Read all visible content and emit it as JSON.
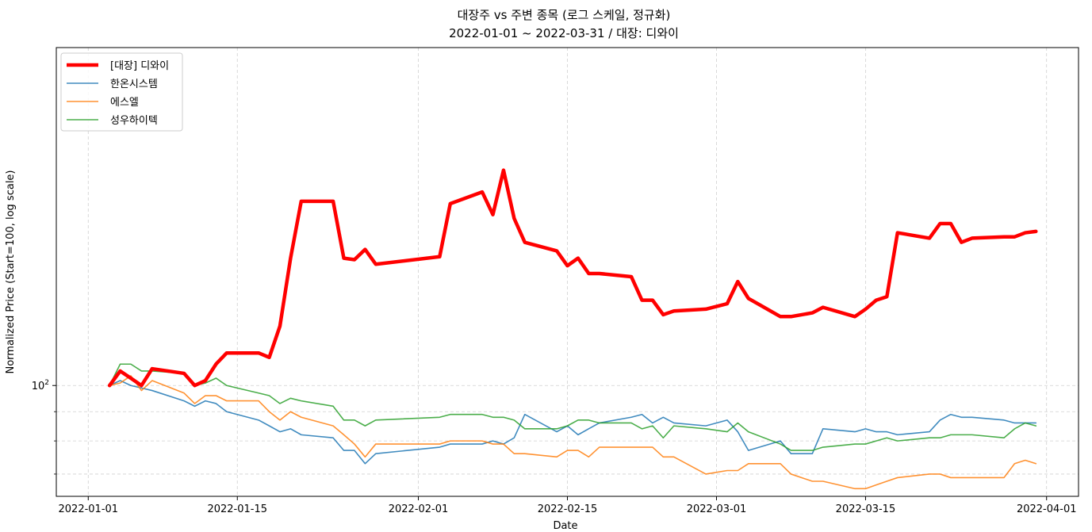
{
  "chart_data": {
    "type": "line",
    "title_line1": "대장주 vs 주변 종목 (로그 스케일, 정규화)",
    "title_line2": "2022-01-01 ~ 2022-03-31 / 대장: 디와이",
    "xlabel": "Date",
    "ylabel": "Normalized Price (Start=100, log scale)",
    "y_scale": "log",
    "ylim": [
      64,
      390
    ],
    "y_ticks": [
      {
        "value": 100,
        "label": "10²"
      }
    ],
    "y_minor_grid": [
      70,
      80,
      90
    ],
    "x_ticks": [
      {
        "date": "2022-01-01",
        "label": "2022-01-01"
      },
      {
        "date": "2022-01-15",
        "label": "2022-01-15"
      },
      {
        "date": "2022-02-01",
        "label": "2022-02-01"
      },
      {
        "date": "2022-02-15",
        "label": "2022-02-15"
      },
      {
        "date": "2022-03-01",
        "label": "2022-03-01"
      },
      {
        "date": "2022-03-15",
        "label": "2022-03-15"
      },
      {
        "date": "2022-04-01",
        "label": "2022-04-01"
      }
    ],
    "xlim": [
      "2021-12-29",
      "2022-04-04"
    ],
    "grid": true,
    "legend_position": "upper-left",
    "x": [
      "2022-01-03",
      "2022-01-04",
      "2022-01-05",
      "2022-01-06",
      "2022-01-07",
      "2022-01-10",
      "2022-01-11",
      "2022-01-12",
      "2022-01-13",
      "2022-01-14",
      "2022-01-17",
      "2022-01-18",
      "2022-01-19",
      "2022-01-20",
      "2022-01-21",
      "2022-01-24",
      "2022-01-25",
      "2022-01-26",
      "2022-01-27",
      "2022-01-28",
      "2022-02-03",
      "2022-02-04",
      "2022-02-07",
      "2022-02-08",
      "2022-02-09",
      "2022-02-10",
      "2022-02-11",
      "2022-02-14",
      "2022-02-15",
      "2022-02-16",
      "2022-02-17",
      "2022-02-18",
      "2022-02-21",
      "2022-02-22",
      "2022-02-23",
      "2022-02-24",
      "2022-02-25",
      "2022-02-28",
      "2022-03-02",
      "2022-03-03",
      "2022-03-04",
      "2022-03-07",
      "2022-03-08",
      "2022-03-10",
      "2022-03-11",
      "2022-03-14",
      "2022-03-15",
      "2022-03-16",
      "2022-03-17",
      "2022-03-18",
      "2022-03-21",
      "2022-03-22",
      "2022-03-23",
      "2022-03-24",
      "2022-03-25",
      "2022-03-28",
      "2022-03-29",
      "2022-03-30",
      "2022-03-31"
    ],
    "series": [
      {
        "name": "[대장] 디와이",
        "color": "#ff0000",
        "width": 4.5,
        "values": [
          100,
          106,
          103,
          100,
          107,
          105,
          100,
          102,
          109,
          114,
          114,
          112,
          127,
          167,
          210,
          210,
          167,
          166,
          173,
          163,
          168,
          208,
          218,
          199,
          238,
          196,
          178,
          172,
          162,
          167,
          157,
          157,
          155,
          141,
          141,
          133,
          135,
          136,
          139,
          152,
          142,
          132,
          132,
          134,
          137,
          132,
          136,
          141,
          143,
          185,
          181,
          192,
          192,
          178,
          181,
          182,
          182,
          185,
          186
        ]
      },
      {
        "name": "한온시스템",
        "color": "#1f77b4",
        "width": 1.6,
        "values": [
          100,
          102,
          100,
          99,
          98,
          94,
          92,
          94,
          93,
          90,
          87,
          85,
          83,
          84,
          82,
          81,
          77,
          77,
          73,
          76,
          78,
          79,
          79,
          80,
          79,
          81,
          89,
          83,
          85,
          82,
          84,
          86,
          88,
          89,
          86,
          88,
          86,
          85,
          87,
          83,
          77,
          80,
          76,
          76,
          84,
          83,
          84,
          83,
          83,
          82,
          83,
          87,
          89,
          88,
          88,
          87,
          86,
          86,
          86
        ],
        "opacity": 0.85
      },
      {
        "name": "에스엘",
        "color": "#ff7f0e",
        "width": 1.6,
        "values": [
          100,
          101,
          104,
          98,
          102,
          97,
          93,
          96,
          96,
          94,
          94,
          90,
          87,
          90,
          88,
          85,
          82,
          79,
          75,
          79,
          79,
          80,
          80,
          79,
          79,
          76,
          76,
          75,
          77,
          77,
          75,
          78,
          78,
          78,
          78,
          75,
          75,
          70,
          71,
          71,
          73,
          73,
          70,
          68,
          68,
          66,
          66,
          67,
          68,
          69,
          70,
          70,
          69,
          69,
          69,
          69,
          73,
          74,
          73
        ],
        "opacity": 0.85
      },
      {
        "name": "성우하이텍",
        "color": "#2ca02c",
        "width": 1.6,
        "values": [
          100,
          109,
          109,
          106,
          106,
          105,
          100,
          101,
          103,
          100,
          97,
          96,
          93,
          95,
          94,
          92,
          87,
          87,
          85,
          87,
          88,
          89,
          89,
          88,
          88,
          87,
          84,
          84,
          85,
          87,
          87,
          86,
          86,
          84,
          85,
          81,
          85,
          84,
          83,
          86,
          83,
          79,
          77,
          77,
          78,
          79,
          79,
          80,
          81,
          80,
          81,
          81,
          82,
          82,
          82,
          81,
          84,
          86,
          85
        ],
        "opacity": 0.85
      }
    ]
  }
}
